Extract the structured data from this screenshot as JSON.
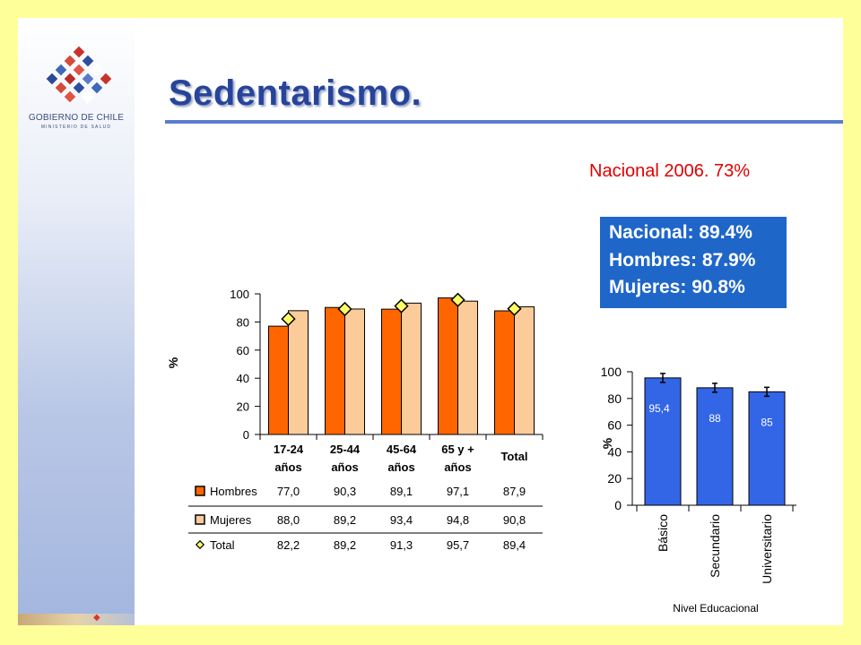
{
  "slide": {
    "title": "Sedentarismo.",
    "subtitle": "Nacional 2006. 73%",
    "logo": {
      "line1": "GOBIERNO DE CHILE",
      "line2": "MINISTERIO DE SALUD",
      "icon": "gobierno-chile-star-logo"
    },
    "blue_box": {
      "lines": [
        "Nacional: 89.4%",
        "Hombres: 87.9%",
        "Mujeres: 90.8%"
      ]
    }
  },
  "colors": {
    "background": "#FFFF99",
    "hombres": "#FF6600",
    "mujeres": "#FBCB9A",
    "total_marker": "#FFFF66",
    "bar_blue": "#3366E6",
    "title": "#27449a",
    "subtitle": "#e00000",
    "box": "#1f66c9"
  },
  "chart_data": [
    {
      "type": "bar",
      "ylabel": "%",
      "ylim": [
        0,
        100
      ],
      "yticks": [
        0,
        20,
        40,
        60,
        80,
        100
      ],
      "categories": [
        [
          "17-24",
          "años"
        ],
        [
          "25-44",
          "años"
        ],
        [
          "45-64",
          "años"
        ],
        [
          "65 y +",
          "años"
        ],
        [
          "Total"
        ]
      ],
      "series": [
        {
          "name": "Hombres",
          "kind": "bar",
          "color": "#FF6600",
          "values": [
            77.0,
            90.3,
            89.1,
            97.1,
            87.9
          ],
          "labels": [
            "77,0",
            "90,3",
            "89,1",
            "97,1",
            "87,9"
          ]
        },
        {
          "name": "Mujeres",
          "kind": "bar",
          "color": "#FBCB9A",
          "values": [
            88.0,
            89.2,
            93.4,
            94.8,
            90.8
          ],
          "labels": [
            "88,0",
            "89,2",
            "93,4",
            "94,8",
            "90,8"
          ]
        },
        {
          "name": "Total",
          "kind": "marker",
          "color": "#FFFF66",
          "values": [
            82.2,
            89.2,
            91.3,
            95.7,
            89.4
          ],
          "labels": [
            "82,2",
            "89,2",
            "91,3",
            "95,7",
            "89,4"
          ]
        }
      ],
      "legend": "table-below"
    },
    {
      "type": "bar",
      "ylabel": "%",
      "xlabel": "Nivel Educacional",
      "ylim": [
        0,
        100
      ],
      "yticks": [
        0,
        20,
        40,
        60,
        80,
        100
      ],
      "categories": [
        "Básico",
        "Secundario",
        "Universitario"
      ],
      "values": [
        95.4,
        88,
        85
      ],
      "labels": [
        "95,4",
        "88",
        "85"
      ],
      "error_bars": true,
      "color": "#3366E6"
    }
  ]
}
